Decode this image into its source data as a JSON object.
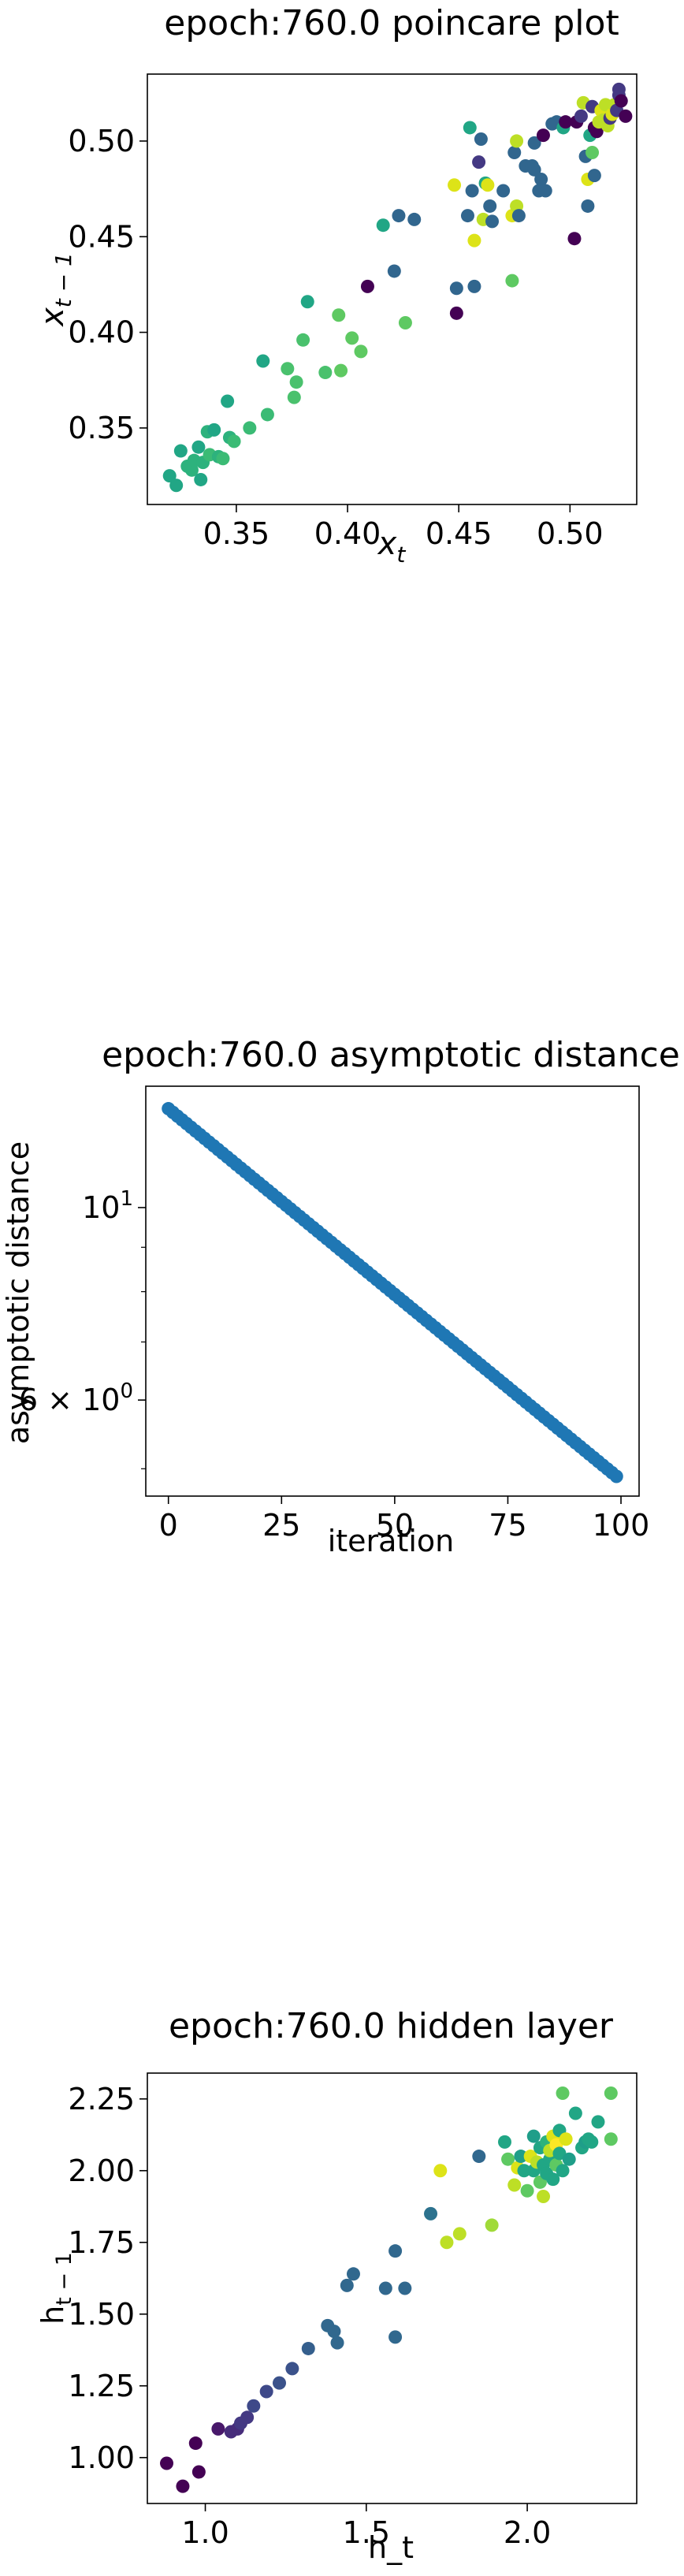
{
  "chart_data": [
    {
      "type": "scatter",
      "title": "epoch:760.0 poincare plot",
      "xlabel": "x_t",
      "ylabel": "x_{t-1}",
      "xlim": [
        0.31,
        0.53
      ],
      "ylim": [
        0.31,
        0.535
      ],
      "xticks": [
        {
          "v": 0.35,
          "label": "0.35"
        },
        {
          "v": 0.4,
          "label": "0.40"
        },
        {
          "v": 0.45,
          "label": "0.45"
        },
        {
          "v": 0.5,
          "label": "0.50"
        }
      ],
      "yticks": [
        {
          "v": 0.35,
          "label": "0.35"
        },
        {
          "v": 0.4,
          "label": "0.40"
        },
        {
          "v": 0.45,
          "label": "0.45"
        },
        {
          "v": 0.5,
          "label": "0.50"
        }
      ],
      "grid": false,
      "points": [
        {
          "x": 0.32,
          "y": 0.325,
          "c": "#21a685"
        },
        {
          "x": 0.323,
          "y": 0.32,
          "c": "#21a685"
        },
        {
          "x": 0.325,
          "y": 0.338,
          "c": "#21a685"
        },
        {
          "x": 0.328,
          "y": 0.33,
          "c": "#2db27d"
        },
        {
          "x": 0.33,
          "y": 0.328,
          "c": "#2db27d"
        },
        {
          "x": 0.331,
          "y": 0.333,
          "c": "#2db27d"
        },
        {
          "x": 0.333,
          "y": 0.34,
          "c": "#21a685"
        },
        {
          "x": 0.334,
          "y": 0.323,
          "c": "#21a685"
        },
        {
          "x": 0.335,
          "y": 0.332,
          "c": "#2db27d"
        },
        {
          "x": 0.337,
          "y": 0.348,
          "c": "#2db27d"
        },
        {
          "x": 0.338,
          "y": 0.336,
          "c": "#3bbb75"
        },
        {
          "x": 0.34,
          "y": 0.349,
          "c": "#21a685"
        },
        {
          "x": 0.342,
          "y": 0.335,
          "c": "#2db27d"
        },
        {
          "x": 0.344,
          "y": 0.334,
          "c": "#3bbb75"
        },
        {
          "x": 0.346,
          "y": 0.364,
          "c": "#21a685"
        },
        {
          "x": 0.347,
          "y": 0.345,
          "c": "#2db27d"
        },
        {
          "x": 0.349,
          "y": 0.343,
          "c": "#3bbb75"
        },
        {
          "x": 0.356,
          "y": 0.35,
          "c": "#3bbb75"
        },
        {
          "x": 0.362,
          "y": 0.385,
          "c": "#21a685"
        },
        {
          "x": 0.364,
          "y": 0.357,
          "c": "#3bbb75"
        },
        {
          "x": 0.373,
          "y": 0.381,
          "c": "#4ac16d"
        },
        {
          "x": 0.376,
          "y": 0.366,
          "c": "#4ac16d"
        },
        {
          "x": 0.377,
          "y": 0.374,
          "c": "#4ac16d"
        },
        {
          "x": 0.38,
          "y": 0.396,
          "c": "#4ac16d"
        },
        {
          "x": 0.382,
          "y": 0.416,
          "c": "#21a685"
        },
        {
          "x": 0.39,
          "y": 0.379,
          "c": "#4ac16d"
        },
        {
          "x": 0.396,
          "y": 0.409,
          "c": "#5ec962"
        },
        {
          "x": 0.397,
          "y": 0.38,
          "c": "#5ec962"
        },
        {
          "x": 0.402,
          "y": 0.397,
          "c": "#5ec962"
        },
        {
          "x": 0.406,
          "y": 0.39,
          "c": "#5ec962"
        },
        {
          "x": 0.409,
          "y": 0.424,
          "c": "#440154"
        },
        {
          "x": 0.416,
          "y": 0.456,
          "c": "#21a685"
        },
        {
          "x": 0.421,
          "y": 0.432,
          "c": "#31668e"
        },
        {
          "x": 0.423,
          "y": 0.461,
          "c": "#31668e"
        },
        {
          "x": 0.426,
          "y": 0.405,
          "c": "#5ec962"
        },
        {
          "x": 0.43,
          "y": 0.459,
          "c": "#31668e"
        },
        {
          "x": 0.448,
          "y": 0.477,
          "c": "#dde318"
        },
        {
          "x": 0.449,
          "y": 0.423,
          "c": "#31668e"
        },
        {
          "x": 0.449,
          "y": 0.41,
          "c": "#440154"
        },
        {
          "x": 0.454,
          "y": 0.461,
          "c": "#31668e"
        },
        {
          "x": 0.455,
          "y": 0.507,
          "c": "#21a685"
        },
        {
          "x": 0.456,
          "y": 0.474,
          "c": "#31668e"
        },
        {
          "x": 0.457,
          "y": 0.448,
          "c": "#dde318"
        },
        {
          "x": 0.457,
          "y": 0.424,
          "c": "#31668e"
        },
        {
          "x": 0.459,
          "y": 0.489,
          "c": "#443983"
        },
        {
          "x": 0.46,
          "y": 0.501,
          "c": "#31668e"
        },
        {
          "x": 0.461,
          "y": 0.459,
          "c": "#bddf26"
        },
        {
          "x": 0.462,
          "y": 0.478,
          "c": "#21a685"
        },
        {
          "x": 0.463,
          "y": 0.477,
          "c": "#dde318"
        },
        {
          "x": 0.464,
          "y": 0.466,
          "c": "#31668e"
        },
        {
          "x": 0.465,
          "y": 0.458,
          "c": "#31668e"
        },
        {
          "x": 0.47,
          "y": 0.474,
          "c": "#31668e"
        },
        {
          "x": 0.474,
          "y": 0.427,
          "c": "#5ec962"
        },
        {
          "x": 0.474,
          "y": 0.461,
          "c": "#dde318"
        },
        {
          "x": 0.475,
          "y": 0.494,
          "c": "#31668e"
        },
        {
          "x": 0.476,
          "y": 0.466,
          "c": "#bddf26"
        },
        {
          "x": 0.476,
          "y": 0.5,
          "c": "#bddf26"
        },
        {
          "x": 0.477,
          "y": 0.461,
          "c": "#31668e"
        },
        {
          "x": 0.48,
          "y": 0.487,
          "c": "#31668e"
        },
        {
          "x": 0.483,
          "y": 0.487,
          "c": "#31668e"
        },
        {
          "x": 0.484,
          "y": 0.499,
          "c": "#31668e"
        },
        {
          "x": 0.484,
          "y": 0.485,
          "c": "#31668e"
        },
        {
          "x": 0.486,
          "y": 0.474,
          "c": "#31668e"
        },
        {
          "x": 0.487,
          "y": 0.48,
          "c": "#31668e"
        },
        {
          "x": 0.488,
          "y": 0.503,
          "c": "#440154"
        },
        {
          "x": 0.489,
          "y": 0.474,
          "c": "#31668e"
        },
        {
          "x": 0.492,
          "y": 0.509,
          "c": "#31668e"
        },
        {
          "x": 0.494,
          "y": 0.51,
          "c": "#31668e"
        },
        {
          "x": 0.497,
          "y": 0.507,
          "c": "#21a685"
        },
        {
          "x": 0.498,
          "y": 0.51,
          "c": "#440154"
        },
        {
          "x": 0.502,
          "y": 0.449,
          "c": "#440154"
        },
        {
          "x": 0.503,
          "y": 0.51,
          "c": "#440154"
        },
        {
          "x": 0.505,
          "y": 0.513,
          "c": "#443983"
        },
        {
          "x": 0.506,
          "y": 0.52,
          "c": "#bddf26"
        },
        {
          "x": 0.507,
          "y": 0.492,
          "c": "#31668e"
        },
        {
          "x": 0.508,
          "y": 0.466,
          "c": "#31668e"
        },
        {
          "x": 0.508,
          "y": 0.48,
          "c": "#dde318"
        },
        {
          "x": 0.509,
          "y": 0.503,
          "c": "#21a685"
        },
        {
          "x": 0.51,
          "y": 0.518,
          "c": "#443983"
        },
        {
          "x": 0.51,
          "y": 0.494,
          "c": "#5ec962"
        },
        {
          "x": 0.511,
          "y": 0.482,
          "c": "#31668e"
        },
        {
          "x": 0.511,
          "y": 0.507,
          "c": "#440154"
        },
        {
          "x": 0.512,
          "y": 0.505,
          "c": "#440154"
        },
        {
          "x": 0.513,
          "y": 0.51,
          "c": "#bddf26"
        },
        {
          "x": 0.514,
          "y": 0.516,
          "c": "#dde318"
        },
        {
          "x": 0.515,
          "y": 0.511,
          "c": "#bddf26"
        },
        {
          "x": 0.516,
          "y": 0.519,
          "c": "#bddf26"
        },
        {
          "x": 0.517,
          "y": 0.508,
          "c": "#bddf26"
        },
        {
          "x": 0.518,
          "y": 0.512,
          "c": "#443983"
        },
        {
          "x": 0.519,
          "y": 0.514,
          "c": "#dde318"
        },
        {
          "x": 0.52,
          "y": 0.519,
          "c": "#bddf26"
        },
        {
          "x": 0.521,
          "y": 0.516,
          "c": "#443983"
        },
        {
          "x": 0.522,
          "y": 0.524,
          "c": "#443983"
        },
        {
          "x": 0.522,
          "y": 0.527,
          "c": "#443983"
        },
        {
          "x": 0.523,
          "y": 0.521,
          "c": "#440154"
        },
        {
          "x": 0.525,
          "y": 0.513,
          "c": "#440154"
        }
      ]
    },
    {
      "type": "scatter",
      "title": "epoch:760.0 asymptotic distance",
      "xlabel": "iteration",
      "ylabel": "asymptotic distance",
      "xlim": [
        -5,
        104
      ],
      "scale_y": "log",
      "ylim": [
        4.65,
        13.8
      ],
      "xticks": [
        {
          "v": 0,
          "label": "0"
        },
        {
          "v": 25,
          "label": "25"
        },
        {
          "v": 50,
          "label": "50"
        },
        {
          "v": 75,
          "label": "75"
        },
        {
          "v": 100,
          "label": "100"
        }
      ],
      "yticks": [
        {
          "v": 10,
          "base": "10",
          "exp": "1"
        },
        {
          "v": 6,
          "label": "6 × 10",
          "exp": "0"
        }
      ],
      "yminor": [
        5,
        7,
        8,
        9
      ],
      "grid": false,
      "color": "#1f77b4",
      "start": 13.0,
      "end": 4.9,
      "count": 100
    },
    {
      "type": "scatter",
      "title": "epoch:760.0 hidden layer",
      "xlabel": "h_t",
      "ylabel": "h_{t-1}",
      "xlim": [
        0.82,
        2.34
      ],
      "ylim": [
        0.84,
        2.34
      ],
      "xticks": [
        {
          "v": 1.0,
          "label": "1.0"
        },
        {
          "v": 1.5,
          "label": "1.5"
        },
        {
          "v": 2.0,
          "label": "2.0"
        }
      ],
      "yticks": [
        {
          "v": 1.0,
          "label": "1.00"
        },
        {
          "v": 1.25,
          "label": "1.25"
        },
        {
          "v": 1.5,
          "label": "1.50"
        },
        {
          "v": 1.75,
          "label": "1.75"
        },
        {
          "v": 2.0,
          "label": "2.00"
        },
        {
          "v": 2.25,
          "label": "2.25"
        }
      ],
      "grid": false,
      "points": [
        {
          "x": 0.88,
          "y": 0.98,
          "c": "#440154"
        },
        {
          "x": 0.93,
          "y": 0.9,
          "c": "#440154"
        },
        {
          "x": 0.97,
          "y": 1.05,
          "c": "#440154"
        },
        {
          "x": 0.98,
          "y": 0.95,
          "c": "#440154"
        },
        {
          "x": 1.04,
          "y": 1.1,
          "c": "#48186a"
        },
        {
          "x": 1.08,
          "y": 1.09,
          "c": "#472d7b"
        },
        {
          "x": 1.1,
          "y": 1.1,
          "c": "#472d7b"
        },
        {
          "x": 1.11,
          "y": 1.12,
          "c": "#443983"
        },
        {
          "x": 1.13,
          "y": 1.14,
          "c": "#443983"
        },
        {
          "x": 1.15,
          "y": 1.18,
          "c": "#3e4989"
        },
        {
          "x": 1.19,
          "y": 1.23,
          "c": "#3e4989"
        },
        {
          "x": 1.23,
          "y": 1.26,
          "c": "#3b528b"
        },
        {
          "x": 1.27,
          "y": 1.31,
          "c": "#3b528b"
        },
        {
          "x": 1.32,
          "y": 1.38,
          "c": "#355f8d"
        },
        {
          "x": 1.38,
          "y": 1.46,
          "c": "#31688e"
        },
        {
          "x": 1.4,
          "y": 1.44,
          "c": "#31688e"
        },
        {
          "x": 1.41,
          "y": 1.4,
          "c": "#31688e"
        },
        {
          "x": 1.44,
          "y": 1.6,
          "c": "#31688e"
        },
        {
          "x": 1.46,
          "y": 1.64,
          "c": "#31688e"
        },
        {
          "x": 1.56,
          "y": 1.59,
          "c": "#31688e"
        },
        {
          "x": 1.59,
          "y": 1.72,
          "c": "#31688e"
        },
        {
          "x": 1.59,
          "y": 1.42,
          "c": "#31688e"
        },
        {
          "x": 1.62,
          "y": 1.59,
          "c": "#31688e"
        },
        {
          "x": 1.7,
          "y": 1.85,
          "c": "#2c728e"
        },
        {
          "x": 1.73,
          "y": 2.0,
          "c": "#dde318"
        },
        {
          "x": 1.75,
          "y": 1.75,
          "c": "#bddf26"
        },
        {
          "x": 1.79,
          "y": 1.78,
          "c": "#bddf26"
        },
        {
          "x": 1.85,
          "y": 2.05,
          "c": "#31688e"
        },
        {
          "x": 1.89,
          "y": 1.81,
          "c": "#a0da39"
        },
        {
          "x": 1.93,
          "y": 2.1,
          "c": "#21a685"
        },
        {
          "x": 1.94,
          "y": 2.04,
          "c": "#5ec962"
        },
        {
          "x": 1.96,
          "y": 1.95,
          "c": "#bddf26"
        },
        {
          "x": 1.97,
          "y": 2.01,
          "c": "#dde318"
        },
        {
          "x": 1.98,
          "y": 2.05,
          "c": "#1f9e89"
        },
        {
          "x": 1.99,
          "y": 2.0,
          "c": "#21a685"
        },
        {
          "x": 2.0,
          "y": 1.93,
          "c": "#5ec962"
        },
        {
          "x": 2.01,
          "y": 2.05,
          "c": "#dde318"
        },
        {
          "x": 2.02,
          "y": 2.12,
          "c": "#1f9e89"
        },
        {
          "x": 2.02,
          "y": 2.0,
          "c": "#21a685"
        },
        {
          "x": 2.03,
          "y": 2.03,
          "c": "#bddf26"
        },
        {
          "x": 2.04,
          "y": 1.96,
          "c": "#5ec962"
        },
        {
          "x": 2.04,
          "y": 2.08,
          "c": "#21a685"
        },
        {
          "x": 2.05,
          "y": 2.02,
          "c": "#21a685"
        },
        {
          "x": 2.05,
          "y": 1.91,
          "c": "#bddf26"
        },
        {
          "x": 2.06,
          "y": 2.1,
          "c": "#2db27d"
        },
        {
          "x": 2.06,
          "y": 1.99,
          "c": "#21a685"
        },
        {
          "x": 2.07,
          "y": 2.04,
          "c": "#21a685"
        },
        {
          "x": 2.07,
          "y": 2.07,
          "c": "#bddf26"
        },
        {
          "x": 2.08,
          "y": 2.12,
          "c": "#dde318"
        },
        {
          "x": 2.08,
          "y": 1.97,
          "c": "#21a685"
        },
        {
          "x": 2.09,
          "y": 2.02,
          "c": "#5ec962"
        },
        {
          "x": 2.09,
          "y": 2.09,
          "c": "#fde725"
        },
        {
          "x": 2.1,
          "y": 2.06,
          "c": "#21a685"
        },
        {
          "x": 2.1,
          "y": 2.14,
          "c": "#21a685"
        },
        {
          "x": 2.11,
          "y": 2.27,
          "c": "#5ec962"
        },
        {
          "x": 2.11,
          "y": 2.0,
          "c": "#21a685"
        },
        {
          "x": 2.12,
          "y": 2.11,
          "c": "#dde318"
        },
        {
          "x": 2.13,
          "y": 2.04,
          "c": "#1f9e89"
        },
        {
          "x": 2.15,
          "y": 2.2,
          "c": "#21a685"
        },
        {
          "x": 2.17,
          "y": 2.08,
          "c": "#21a685"
        },
        {
          "x": 2.18,
          "y": 2.1,
          "c": "#1f9e89"
        },
        {
          "x": 2.19,
          "y": 2.11,
          "c": "#21a685"
        },
        {
          "x": 2.2,
          "y": 2.1,
          "c": "#21a685"
        },
        {
          "x": 2.22,
          "y": 2.17,
          "c": "#21a685"
        },
        {
          "x": 2.26,
          "y": 2.27,
          "c": "#5ec962"
        },
        {
          "x": 2.26,
          "y": 2.11,
          "c": "#5ec962"
        }
      ]
    }
  ]
}
